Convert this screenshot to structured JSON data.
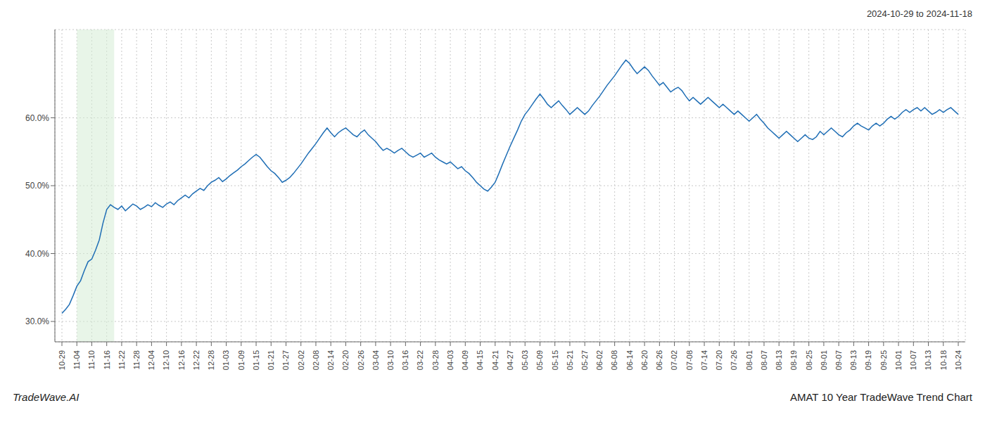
{
  "chart_data": {
    "type": "line",
    "title": "2024-10-29 to 2024-11-18",
    "annotations": [
      "TradeWave.AI",
      "AMAT 10 Year TradeWave Trend Chart"
    ],
    "color": "#1f6eb5",
    "grid": true,
    "ylim": [
      27.0,
      73.0
    ],
    "yticks": [
      {
        "value": 30.0,
        "label": "30.0%"
      },
      {
        "value": 40.0,
        "label": "40.0%"
      },
      {
        "value": 50.0,
        "label": "50.0%"
      },
      {
        "value": 60.0,
        "label": "60.0%"
      }
    ],
    "highlight": {
      "start": 4,
      "end": 14,
      "color": "#d6ecd6"
    },
    "categories": [
      "10-29",
      null,
      null,
      null,
      "11-04",
      null,
      null,
      null,
      "11-10",
      null,
      null,
      null,
      "11-16",
      null,
      null,
      null,
      "11-22",
      null,
      null,
      null,
      "11-28",
      null,
      null,
      null,
      "12-04",
      null,
      null,
      null,
      "12-10",
      null,
      null,
      null,
      "12-16",
      null,
      null,
      null,
      "12-22",
      null,
      null,
      null,
      "12-28",
      null,
      null,
      null,
      "01-03",
      null,
      null,
      null,
      "01-09",
      null,
      null,
      null,
      "01-15",
      null,
      null,
      null,
      "01-21",
      null,
      null,
      null,
      "01-27",
      null,
      null,
      null,
      "02-02",
      null,
      null,
      null,
      "02-08",
      null,
      null,
      null,
      "02-14",
      null,
      null,
      null,
      "02-20",
      null,
      null,
      null,
      "02-26",
      null,
      null,
      null,
      "03-04",
      null,
      null,
      null,
      "03-10",
      null,
      null,
      null,
      "03-16",
      null,
      null,
      null,
      "03-22",
      null,
      null,
      null,
      "03-28",
      null,
      null,
      null,
      "04-03",
      null,
      null,
      null,
      "04-09",
      null,
      null,
      null,
      "04-15",
      null,
      null,
      null,
      "04-21",
      null,
      null,
      null,
      "04-27",
      null,
      null,
      null,
      "05-03",
      null,
      null,
      null,
      "05-09",
      null,
      null,
      null,
      "05-15",
      null,
      null,
      null,
      "05-21",
      null,
      null,
      null,
      "05-27",
      null,
      null,
      null,
      "06-02",
      null,
      null,
      null,
      "06-08",
      null,
      null,
      null,
      "06-14",
      null,
      null,
      null,
      "06-20",
      null,
      null,
      null,
      "06-26",
      null,
      null,
      null,
      "07-02",
      null,
      null,
      null,
      "07-08",
      null,
      null,
      null,
      "07-14",
      null,
      null,
      null,
      "07-20",
      null,
      null,
      null,
      "07-26",
      null,
      null,
      null,
      "08-01",
      null,
      null,
      null,
      "08-07",
      null,
      null,
      null,
      "08-13",
      null,
      null,
      null,
      "08-19",
      null,
      null,
      null,
      "08-25",
      null,
      null,
      null,
      "09-01",
      null,
      null,
      null,
      "09-07",
      null,
      null,
      null,
      "09-13",
      null,
      null,
      null,
      "09-19",
      null,
      null,
      null,
      "09-25",
      null,
      null,
      null,
      "10-01",
      null,
      null,
      null,
      "10-07",
      null,
      null,
      null,
      "10-13",
      null,
      null,
      null,
      "10-18",
      null,
      null,
      null,
      "10-24"
    ],
    "values": [
      31.2,
      31.8,
      32.5,
      33.8,
      35.2,
      36.0,
      37.5,
      38.8,
      39.2,
      40.5,
      42.0,
      44.5,
      46.5,
      47.2,
      46.8,
      46.5,
      47.0,
      46.3,
      46.8,
      47.3,
      47.0,
      46.5,
      46.8,
      47.2,
      46.9,
      47.5,
      47.1,
      46.8,
      47.3,
      47.6,
      47.2,
      47.8,
      48.2,
      48.6,
      48.2,
      48.8,
      49.2,
      49.6,
      49.3,
      50.0,
      50.5,
      50.8,
      51.2,
      50.6,
      51.0,
      51.5,
      51.9,
      52.3,
      52.8,
      53.2,
      53.7,
      54.2,
      54.6,
      54.2,
      53.5,
      52.8,
      52.2,
      51.8,
      51.2,
      50.5,
      50.8,
      51.2,
      51.8,
      52.5,
      53.2,
      54.0,
      54.8,
      55.5,
      56.2,
      57.0,
      57.8,
      58.5,
      57.8,
      57.2,
      57.8,
      58.2,
      58.5,
      58.0,
      57.5,
      57.2,
      57.8,
      58.2,
      57.5,
      57.0,
      56.5,
      55.8,
      55.2,
      55.5,
      55.2,
      54.8,
      55.2,
      55.5,
      55.0,
      54.5,
      54.2,
      54.5,
      54.8,
      54.2,
      54.5,
      54.8,
      54.2,
      53.8,
      53.5,
      53.2,
      53.5,
      53.0,
      52.5,
      52.8,
      52.2,
      51.8,
      51.2,
      50.5,
      50.0,
      49.5,
      49.2,
      49.8,
      50.5,
      51.8,
      53.2,
      54.5,
      55.8,
      57.0,
      58.2,
      59.5,
      60.5,
      61.2,
      62.0,
      62.8,
      63.5,
      62.8,
      62.0,
      61.5,
      62.0,
      62.5,
      61.8,
      61.2,
      60.5,
      61.0,
      61.5,
      61.0,
      60.5,
      61.0,
      61.8,
      62.5,
      63.2,
      64.0,
      64.8,
      65.5,
      66.2,
      67.0,
      67.8,
      68.5,
      68.0,
      67.2,
      66.5,
      67.0,
      67.5,
      67.0,
      66.2,
      65.5,
      64.8,
      65.2,
      64.5,
      63.8,
      64.2,
      64.5,
      64.0,
      63.2,
      62.5,
      63.0,
      62.5,
      62.0,
      62.5,
      63.0,
      62.5,
      62.0,
      61.5,
      62.0,
      61.5,
      61.0,
      60.5,
      61.0,
      60.5,
      60.0,
      59.5,
      60.0,
      60.5,
      59.8,
      59.2,
      58.5,
      58.0,
      57.5,
      57.0,
      57.5,
      58.0,
      57.5,
      57.0,
      56.5,
      57.0,
      57.5,
      57.0,
      56.8,
      57.2,
      58.0,
      57.5,
      58.0,
      58.5,
      58.0,
      57.5,
      57.2,
      57.8,
      58.2,
      58.8,
      59.2,
      58.8,
      58.5,
      58.2,
      58.8,
      59.2,
      58.8,
      59.2,
      59.8,
      60.2,
      59.8,
      60.2,
      60.8,
      61.2,
      60.8,
      61.2,
      61.5,
      61.0,
      61.5,
      61.0,
      60.5,
      60.8,
      61.2,
      60.8,
      61.2,
      61.5,
      61.0,
      60.5
    ]
  }
}
